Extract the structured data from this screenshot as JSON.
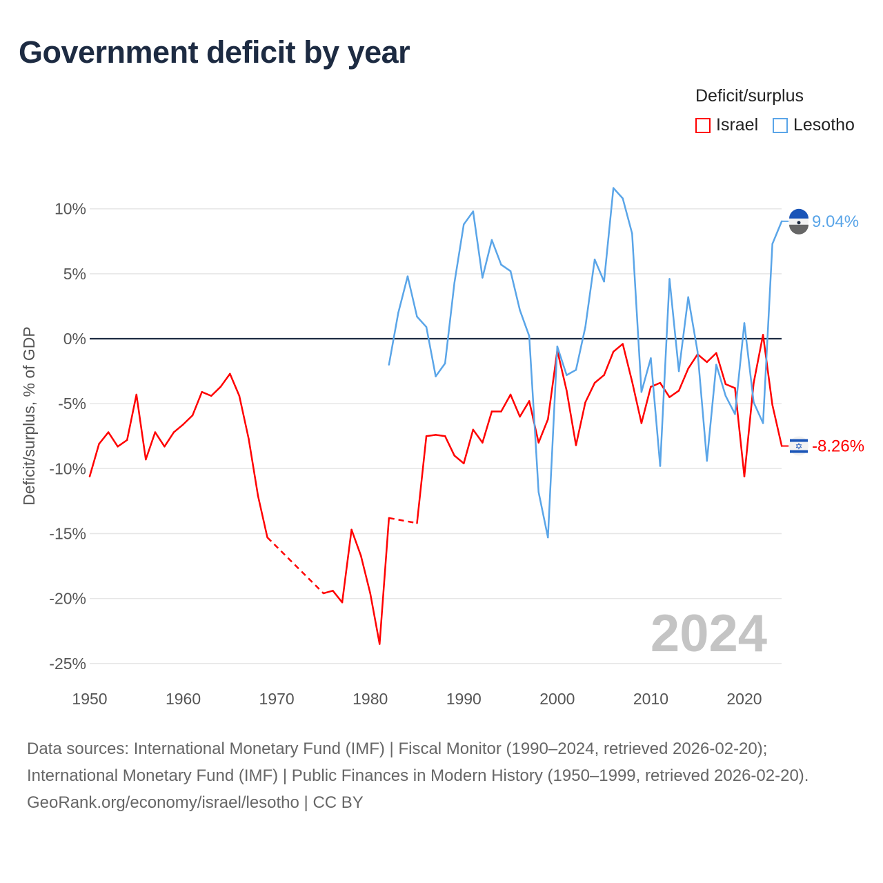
{
  "chart_data": {
    "type": "line",
    "title": "Government deficit by year",
    "ylabel": "Deficit/surplus, % of GDP",
    "xlabel": "",
    "xlim": [
      1950,
      2024
    ],
    "ylim": [
      -25,
      10
    ],
    "x_ticks": [
      "1950",
      "1960",
      "1970",
      "1980",
      "1990",
      "2000",
      "2010",
      "2020"
    ],
    "y_ticks": [
      "10%",
      "5%",
      "0%",
      "-5%",
      "-10%",
      "-15%",
      "-20%",
      "-25%"
    ],
    "y_tick_values": [
      10,
      5,
      0,
      -5,
      -10,
      -15,
      -20,
      -25
    ],
    "legend_title": "Deficit/surplus",
    "legend_position": "top-right",
    "watermark_year": "2024",
    "grid": true,
    "series": [
      {
        "name": "Israel",
        "color": "#ff0000",
        "end_label": "-8.26%",
        "start_year": 1950,
        "values": [
          -10.6,
          -8.1,
          -7.2,
          -8.3,
          -7.8,
          -4.3,
          -9.3,
          -7.2,
          -8.3,
          -7.2,
          -6.6,
          -5.9,
          -4.1,
          -4.4,
          -3.7,
          -2.7,
          -4.4,
          -7.7,
          -12.1,
          -15.3,
          null,
          null,
          null,
          null,
          null,
          -19.6,
          -19.4,
          -20.3,
          -14.7,
          -16.7,
          -19.6,
          -23.5,
          -13.8,
          null,
          null,
          -14.2,
          -7.5,
          -7.4,
          -7.5,
          -9.0,
          -9.6,
          -7.0,
          -8.0,
          -5.6,
          -5.6,
          -4.3,
          -6.0,
          -4.8,
          -8.0,
          -6.2,
          -0.9,
          -4.0,
          -8.2,
          -4.9,
          -3.4,
          -2.8,
          -1.0,
          -0.4,
          -3.3,
          -6.5,
          -3.7,
          -3.4,
          -4.5,
          -4.0,
          -2.3,
          -1.2,
          -1.8,
          -1.1,
          -3.5,
          -3.8,
          -10.6,
          -3.4,
          0.3,
          -5.1,
          -8.26
        ]
      },
      {
        "name": "Lesotho",
        "color": "#5aa5e8",
        "end_label": "9.04%",
        "start_year": 1982,
        "values": [
          -2.0,
          2.0,
          4.8,
          1.7,
          0.9,
          -2.9,
          -1.9,
          4.3,
          8.8,
          9.8,
          4.7,
          7.6,
          5.7,
          5.2,
          2.2,
          0.2,
          -11.8,
          -15.3,
          -0.6,
          -2.8,
          -2.4,
          0.9,
          6.1,
          4.4,
          11.6,
          10.8,
          8.1,
          -4.1,
          -1.5,
          -9.8,
          4.6,
          -2.5,
          3.2,
          -1.0,
          -9.4,
          -2.0,
          -4.4,
          -5.8,
          1.2,
          -4.9,
          -6.5,
          7.3,
          9.04
        ]
      }
    ]
  },
  "footer": {
    "sources": "Data sources: International Monetary Fund (IMF) | Fiscal Monitor (1990–2024, retrieved 2026-02-20); International Monetary Fund (IMF) | Public Finances in Modern History (1950–1999, retrieved 2026-02-20).",
    "credit": "GeoRank.org/economy/israel/lesotho | CC BY"
  }
}
